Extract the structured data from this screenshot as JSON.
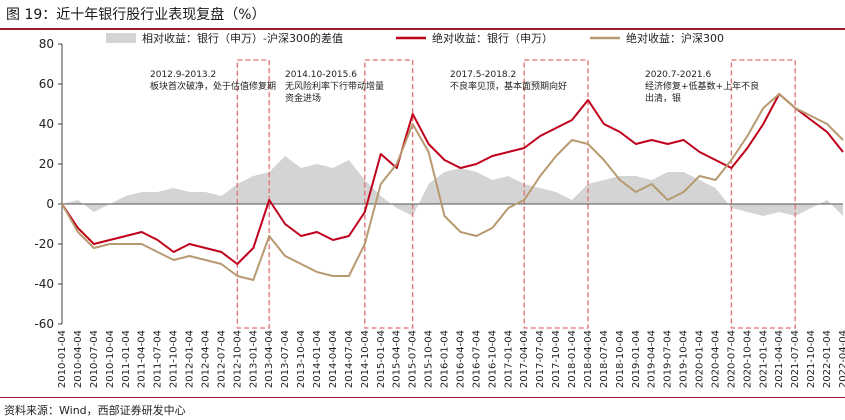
{
  "figure": {
    "title": "图 19：近十年银行股行业表现复盘（%）",
    "source": "资料来源：Wind，西部证券研发中心"
  },
  "colors": {
    "relative": "#d4d4d4",
    "bank": "#c0001a",
    "index": "#b89a70",
    "highlight_box": "#e07070",
    "rule": "#9b1b30"
  },
  "chart_data": {
    "type": "line",
    "x": [
      "2010-01-04",
      "2010-04-04",
      "2010-07-04",
      "2010-10-04",
      "2011-01-04",
      "2011-04-04",
      "2011-07-04",
      "2011-10-04",
      "2012-01-04",
      "2012-04-04",
      "2012-07-04",
      "2012-10-04",
      "2013-01-04",
      "2013-04-04",
      "2013-07-04",
      "2013-10-04",
      "2014-01-04",
      "2014-04-04",
      "2014-07-04",
      "2014-10-04",
      "2015-01-04",
      "2015-04-04",
      "2015-07-04",
      "2015-10-04",
      "2016-01-04",
      "2016-04-04",
      "2016-07-04",
      "2016-10-04",
      "2017-01-04",
      "2017-04-04",
      "2017-07-04",
      "2017-10-04",
      "2018-01-04",
      "2018-04-04",
      "2018-07-04",
      "2018-10-04",
      "2019-01-04",
      "2019-04-04",
      "2019-07-04",
      "2019-10-04",
      "2020-01-04",
      "2020-04-04",
      "2020-07-04",
      "2020-10-04",
      "2021-01-04",
      "2021-04-04",
      "2021-07-04",
      "2021-10-04",
      "2022-01-04",
      "2022-04-04"
    ],
    "ylim": [
      -60,
      80
    ],
    "yticks": [
      -60,
      -40,
      -20,
      0,
      20,
      40,
      60,
      80
    ],
    "legend_position": "top",
    "grid": false,
    "series": [
      {
        "name": "相对收益：银行（申万）-沪深300的差值",
        "style": "area",
        "values": [
          0,
          2,
          -4,
          0,
          4,
          6,
          6,
          8,
          6,
          6,
          4,
          10,
          14,
          16,
          24,
          18,
          20,
          18,
          22,
          12,
          4,
          -2,
          -6,
          10,
          16,
          18,
          16,
          12,
          14,
          10,
          8,
          6,
          2,
          10,
          12,
          14,
          14,
          12,
          16,
          16,
          12,
          8,
          -2,
          -4,
          -6,
          -4,
          -6,
          -2,
          2,
          -6
        ]
      },
      {
        "name": "绝对收益：银行（申万）",
        "style": "line",
        "values": [
          0,
          -12,
          -20,
          -18,
          -16,
          -14,
          -18,
          -24,
          -20,
          -22,
          -24,
          -30,
          -22,
          2,
          -10,
          -16,
          -14,
          -18,
          -16,
          -4,
          25,
          18,
          45,
          30,
          22,
          18,
          20,
          24,
          26,
          28,
          34,
          38,
          42,
          52,
          40,
          36,
          30,
          32,
          30,
          32,
          26,
          22,
          18,
          28,
          40,
          55,
          48,
          42,
          36,
          26
        ]
      },
      {
        "name": "绝对收益：沪深300",
        "style": "line",
        "values": [
          0,
          -14,
          -22,
          -20,
          -20,
          -20,
          -24,
          -28,
          -26,
          -28,
          -30,
          -36,
          -38,
          -16,
          -26,
          -30,
          -34,
          -36,
          -36,
          -20,
          10,
          20,
          40,
          26,
          -6,
          -14,
          -16,
          -12,
          -2,
          2,
          14,
          24,
          32,
          30,
          22,
          12,
          6,
          10,
          2,
          6,
          14,
          12,
          22,
          34,
          48,
          55,
          48,
          44,
          40,
          32
        ]
      }
    ],
    "annotations": [
      {
        "label": "2012.9-2013.2 板块首次破净，处于估值修复期",
        "start_index": 11,
        "end_index": 13
      },
      {
        "label": "2014.10-2015.6 无风险利率下行带动增量资金进场",
        "start_index": 19,
        "end_index": 22
      },
      {
        "label": "2017.5-2018.2 不良率见顶，基本面预期向好",
        "start_index": 29,
        "end_index": 33
      },
      {
        "label": "2020.7-2021.6 经济修复+低基数+上年不良出清，银",
        "start_index": 42,
        "end_index": 46
      }
    ]
  }
}
